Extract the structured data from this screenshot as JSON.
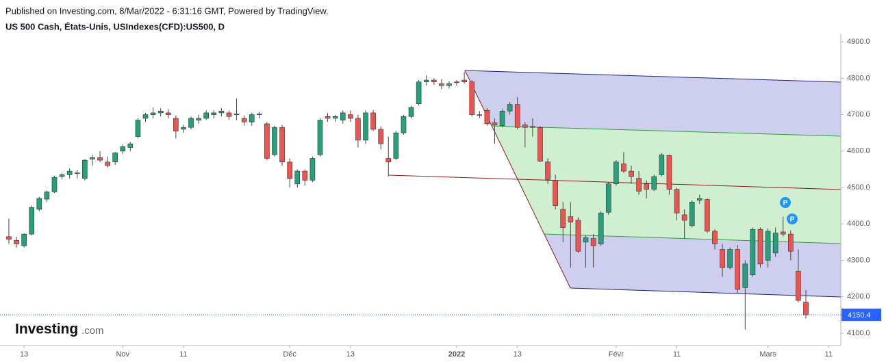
{
  "chart_data": {
    "type": "candlestick",
    "published": "Published on Investing.com, 8/Mar/2022 - 6:31:16 GMT, Powered by TradingView.",
    "title": "US 500 Cash, États-Unis, USIndexes(CFD):US500, D",
    "logo_main": "Investing",
    "logo_suffix": ".com",
    "markers": [
      "P",
      "P"
    ],
    "up_color": "#26a17b",
    "down_color": "#ef5350",
    "last_price": 4150.4,
    "last_price_color": "#2962ff",
    "ylim": [
      4066,
      4921
    ],
    "yticks": [
      {
        "value": 4100,
        "label": "4100.0"
      },
      {
        "value": 4200,
        "label": "4200.0"
      },
      {
        "value": 4300,
        "label": "4300.0"
      },
      {
        "value": 4400,
        "label": "4400.0"
      },
      {
        "value": 4500,
        "label": "4500.0"
      },
      {
        "value": 4600,
        "label": "4600.0"
      },
      {
        "value": 4700,
        "label": "4700.0"
      },
      {
        "value": 4800,
        "label": "4800.0"
      },
      {
        "value": 4900,
        "label": "4900.0"
      }
    ],
    "xlim": [
      -1.17,
      109.6
    ],
    "xticks": [
      {
        "value": 2,
        "label": "13"
      },
      {
        "value": 15,
        "label": "Nov"
      },
      {
        "value": 23,
        "label": "11"
      },
      {
        "value": 37,
        "label": "Déc"
      },
      {
        "value": 45,
        "label": "13"
      },
      {
        "value": 59,
        "label": "2022"
      },
      {
        "value": 67,
        "label": "13"
      },
      {
        "value": 80,
        "label": "Févr"
      },
      {
        "value": 88,
        "label": "11"
      },
      {
        "value": 100,
        "label": "Mars"
      },
      {
        "value": 108,
        "label": "11"
      }
    ],
    "x": [
      0,
      1,
      2,
      3,
      4,
      5,
      6,
      7,
      8,
      9,
      10,
      11,
      12,
      13,
      14,
      15,
      16,
      17,
      18,
      19,
      20,
      21,
      22,
      23,
      24,
      25,
      26,
      27,
      28,
      29,
      30,
      31,
      32,
      33,
      34,
      35,
      36,
      37,
      38,
      39,
      40,
      41,
      42,
      43,
      44,
      45,
      46,
      47,
      48,
      49,
      50,
      51,
      52,
      53,
      54,
      55,
      56,
      57,
      58,
      59,
      60,
      61,
      62,
      63,
      64,
      65,
      66,
      67,
      68,
      69,
      70,
      71,
      72,
      73,
      74,
      75,
      76,
      77,
      78,
      79,
      80,
      81,
      82,
      83,
      84,
      85,
      86,
      87,
      88,
      89,
      90,
      91,
      92,
      93,
      94,
      95,
      96,
      97,
      98,
      99,
      100,
      101,
      102,
      103,
      104,
      105
    ],
    "open": [
      4365,
      4355,
      4340,
      4372,
      4440,
      4468,
      4488,
      4530,
      4535,
      4540,
      4525,
      4578,
      4582,
      4570,
      4570,
      4600,
      4610,
      4640,
      4690,
      4700,
      4705,
      4705,
      4690,
      4660,
      4665,
      4685,
      4690,
      4700,
      4705,
      4705,
      4700,
      4690,
      4680,
      4700,
      4675,
      4590,
      4665,
      4570,
      4510,
      4545,
      4520,
      4590,
      4695,
      4690,
      4685,
      4700,
      4690,
      4630,
      4705,
      4660,
      4580,
      4580,
      4650,
      4695,
      4730,
      4790,
      4795,
      4785,
      4780,
      4790,
      4795,
      4790,
      4700,
      4712,
      4678,
      4670,
      4710,
      4728,
      4672,
      4668,
      4665,
      4570,
      4520,
      4440,
      4420,
      4410,
      4350,
      4360,
      4345,
      4432,
      4510,
      4565,
      4545,
      4525,
      4510,
      4495,
      4535,
      4588,
      4495,
      4425,
      4395,
      4465,
      4467,
      4380,
      4330,
      4280,
      4330,
      4225,
      4260,
      4385,
      4300,
      4320,
      4378,
      4372,
      4270,
      4185
    ],
    "high": [
      4415,
      4365,
      4375,
      4450,
      4475,
      4492,
      4532,
      4540,
      4552,
      4548,
      4578,
      4590,
      4600,
      4585,
      4598,
      4618,
      4625,
      4690,
      4705,
      4720,
      4718,
      4715,
      4698,
      4672,
      4695,
      4700,
      4712,
      4712,
      4718,
      4712,
      4745,
      4698,
      4705,
      4708,
      4680,
      4670,
      4672,
      4580,
      4550,
      4550,
      4585,
      4690,
      4705,
      4700,
      4712,
      4712,
      4700,
      4712,
      4712,
      4668,
      4640,
      4655,
      4700,
      4725,
      4795,
      4808,
      4800,
      4798,
      4792,
      4795,
      4818,
      4795,
      4710,
      4718,
      4690,
      4715,
      4735,
      4748,
      4680,
      4690,
      4668,
      4580,
      4535,
      4460,
      4460,
      4418,
      4368,
      4372,
      4435,
      4515,
      4575,
      4598,
      4560,
      4545,
      4520,
      4535,
      4595,
      4590,
      4500,
      4440,
      4465,
      4480,
      4470,
      4385,
      4345,
      4335,
      4342,
      4300,
      4390,
      4390,
      4388,
      4390,
      4420,
      4382,
      4330,
      4218
    ],
    "low": [
      4345,
      4335,
      4335,
      4368,
      4435,
      4460,
      4485,
      4522,
      4525,
      4525,
      4520,
      4560,
      4570,
      4555,
      4562,
      4592,
      4600,
      4635,
      4680,
      4690,
      4695,
      4690,
      4635,
      4650,
      4660,
      4675,
      4685,
      4690,
      4695,
      4685,
      4685,
      4670,
      4670,
      4690,
      4575,
      4585,
      4560,
      4500,
      4500,
      4505,
      4515,
      4585,
      4680,
      4680,
      4675,
      4680,
      4610,
      4620,
      4655,
      4605,
      4530,
      4575,
      4645,
      4690,
      4725,
      4780,
      4782,
      4770,
      4772,
      4780,
      4785,
      4695,
      4690,
      4670,
      4620,
      4665,
      4700,
      4660,
      4610,
      4640,
      4570,
      4510,
      4440,
      4350,
      4280,
      4320,
      4280,
      4280,
      4340,
      4425,
      4505,
      4540,
      4510,
      4480,
      4470,
      4490,
      4530,
      4480,
      4410,
      4360,
      4390,
      4455,
      4375,
      4330,
      4255,
      4275,
      4210,
      4110,
      4255,
      4280,
      4280,
      4310,
      4365,
      4300,
      4185,
      4140
    ],
    "close": [
      4358,
      4345,
      4372,
      4445,
      4470,
      4488,
      4528,
      4535,
      4545,
      4540,
      4575,
      4582,
      4575,
      4560,
      4595,
      4612,
      4620,
      4685,
      4700,
      4705,
      4710,
      4700,
      4655,
      4665,
      4690,
      4690,
      4705,
      4705,
      4710,
      4695,
      4702,
      4680,
      4700,
      4702,
      4580,
      4665,
      4570,
      4525,
      4545,
      4520,
      4580,
      4685,
      4690,
      4695,
      4705,
      4690,
      4630,
      4705,
      4660,
      4620,
      4570,
      4650,
      4695,
      4720,
      4790,
      4795,
      4790,
      4780,
      4785,
      4788,
      4790,
      4700,
      4698,
      4675,
      4672,
      4710,
      4728,
      4665,
      4665,
      4665,
      4572,
      4522,
      4450,
      4390,
      4405,
      4325,
      4362,
      4340,
      4430,
      4510,
      4570,
      4545,
      4530,
      4490,
      4495,
      4530,
      4590,
      4495,
      4430,
      4410,
      4460,
      4470,
      4380,
      4345,
      4280,
      4330,
      4220,
      4290,
      4385,
      4290,
      4380,
      4375,
      4372,
      4325,
      4190,
      4150.4
    ]
  }
}
